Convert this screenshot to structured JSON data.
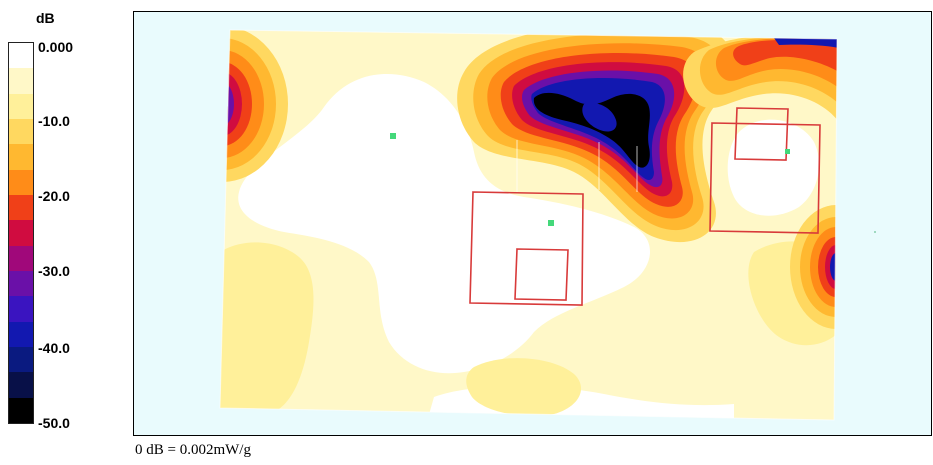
{
  "chart_data": {
    "type": "heatmap",
    "colorbar": {
      "unit": "dB",
      "tick_labels": [
        "0.000",
        "-10.0",
        "-20.0",
        "-30.0",
        "-40.0",
        "-50.0"
      ],
      "range": [
        -50,
        0
      ],
      "levels": [
        {
          "from": 0,
          "to": -3.3,
          "color": "#ffffff"
        },
        {
          "from": -3.3,
          "to": -6.7,
          "color": "#fff8c8"
        },
        {
          "from": -6.7,
          "to": -10,
          "color": "#fff09a"
        },
        {
          "from": -10,
          "to": -13.3,
          "color": "#ffd860"
        },
        {
          "from": -13.3,
          "to": -16.7,
          "color": "#ffb830"
        },
        {
          "from": -16.7,
          "to": -20,
          "color": "#ff8c18"
        },
        {
          "from": -20,
          "to": -23.3,
          "color": "#f04018"
        },
        {
          "from": -23.3,
          "to": -26.7,
          "color": "#d00c40"
        },
        {
          "from": -26.7,
          "to": -30,
          "color": "#a0087a"
        },
        {
          "from": -30,
          "to": -33.3,
          "color": "#6a10a8"
        },
        {
          "from": -33.3,
          "to": -36.7,
          "color": "#3a14c0"
        },
        {
          "from": -36.7,
          "to": -40,
          "color": "#1218b0"
        },
        {
          "from": -40,
          "to": -43.3,
          "color": "#0a1a80"
        },
        {
          "from": -43.3,
          "to": -46.7,
          "color": "#081048"
        },
        {
          "from": -46.7,
          "to": -50,
          "color": "#000000"
        }
      ]
    },
    "footnote": "0 dB = 0.002mW/g",
    "background_color": "#e9fbfd",
    "marker_color": "#44d87a",
    "outline_color": "#d83a3a"
  }
}
